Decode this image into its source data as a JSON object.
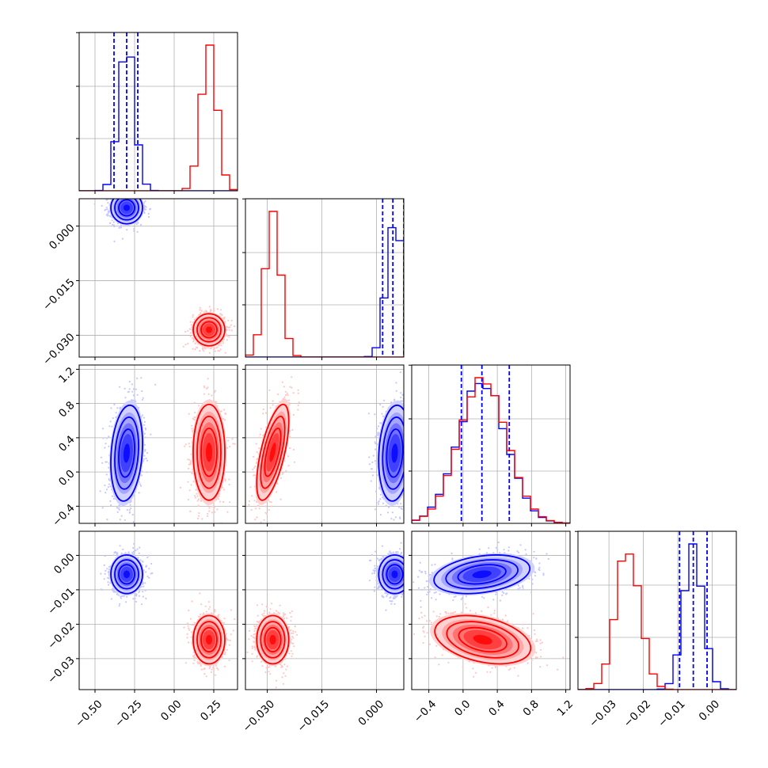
{
  "chart_data": {
    "type": "corner",
    "colors": {
      "blue": "#0000ff",
      "red": "#ff0000"
    },
    "grid": true,
    "parameters": [
      {
        "range": [
          -0.6,
          0.4
        ],
        "ticks": [
          -0.5,
          -0.25,
          0.0,
          0.25
        ],
        "tick_labels": [
          "−0.50",
          "−0.25",
          "0.00",
          "0.25"
        ]
      },
      {
        "range": [
          -0.036,
          0.0075
        ],
        "ticks": [
          0.0,
          -0.015,
          -0.03
        ],
        "tick_labels": [
          "0.000",
          "−0.015",
          "−0.030"
        ],
        "bottom_ticks": [
          -0.03,
          -0.015,
          0.0
        ],
        "bottom_tick_labels": [
          "−0.030",
          "−0.015",
          "0.000"
        ]
      },
      {
        "range": [
          -0.6,
          1.25
        ],
        "ticks": [
          1.2,
          0.8,
          0.4,
          0.0,
          -0.4
        ],
        "tick_labels": [
          "1.2",
          "0.8",
          "0.4",
          "0.0",
          "−0.4"
        ],
        "bottom_ticks": [
          -0.4,
          0.0,
          0.4,
          0.8,
          1.2
        ],
        "bottom_tick_labels": [
          "−0.4",
          "0.0",
          "0.4",
          "0.8",
          "1.2"
        ]
      },
      {
        "range": [
          -0.039,
          0.007
        ],
        "ticks": [
          0.0,
          -0.01,
          -0.02,
          -0.03
        ],
        "tick_labels": [
          "0.00",
          "−0.01",
          "−0.02",
          "−0.03"
        ],
        "bottom_ticks": [
          -0.03,
          -0.02,
          -0.01,
          0.0
        ],
        "bottom_tick_labels": [
          "−0.03",
          "−0.02",
          "−0.01",
          "0.00"
        ]
      }
    ],
    "series": [
      {
        "color": "blue",
        "means": [
          -0.3,
          0.005,
          0.22,
          -0.0055
        ],
        "stds": [
          0.05,
          0.0022,
          0.28,
          0.0028
        ],
        "correlations": {
          "0-1": 0.0,
          "0-2": 0.2,
          "0-3": 0.0,
          "1-2": 0.15,
          "1-3": 0.0,
          "2-3": 0.3
        },
        "quantiles": [
          [
            -0.38,
            -0.3,
            -0.23
          ],
          [
            0.0017,
            0.0045,
            0.0075
          ],
          [
            -0.02,
            0.22,
            0.54
          ],
          [
            -0.0095,
            -0.0055,
            -0.0015
          ]
        ]
      },
      {
        "color": "red",
        "means": [
          0.22,
          -0.0285,
          0.23,
          -0.0245
        ],
        "stds": [
          0.05,
          0.0022,
          0.28,
          0.0035
        ],
        "correlations": {
          "0-1": 0.0,
          "0-2": 0.0,
          "0-3": 0.0,
          "1-2": 0.65,
          "1-3": 0.0,
          "2-3": -0.35
        }
      }
    ]
  }
}
